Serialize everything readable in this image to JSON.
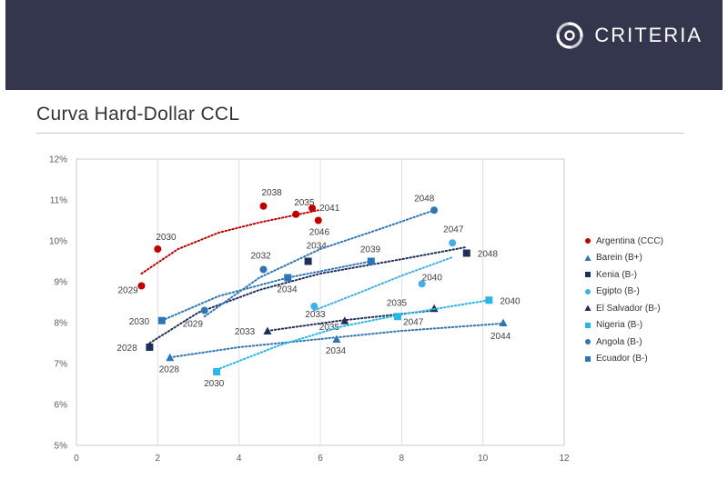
{
  "header": {
    "brand": "CRITERIA"
  },
  "page": {
    "title": "Curva Hard-Dollar CCL"
  },
  "chart_data": {
    "type": "scatter",
    "title": "Curva Hard-Dollar CCL",
    "xlim": [
      0,
      12
    ],
    "ylim": [
      5,
      12
    ],
    "x_ticks": [
      "0",
      "2",
      "4",
      "6",
      "8",
      "10",
      "12"
    ],
    "x_tick_values": [
      0,
      2,
      4,
      6,
      8,
      10,
      12
    ],
    "y_ticks": [
      "5%",
      "6%",
      "7%",
      "8%",
      "9%",
      "10%",
      "11%",
      "12%"
    ],
    "y_tick_values": [
      5,
      6,
      7,
      8,
      9,
      10,
      11,
      12
    ],
    "grid": "vertical",
    "legend_position": "right",
    "series": [
      {
        "name": "Argentina (CCC)",
        "color": "#c00000",
        "marker": "circle",
        "points": [
          {
            "x": 1.6,
            "y": 8.9,
            "label": "2029"
          },
          {
            "x": 2.0,
            "y": 9.8,
            "label": "2030"
          },
          {
            "x": 4.6,
            "y": 10.85,
            "label": "2038"
          },
          {
            "x": 5.4,
            "y": 10.65,
            "label": "2035"
          },
          {
            "x": 5.8,
            "y": 10.8,
            "label": "2041"
          },
          {
            "x": 5.95,
            "y": 10.5,
            "label": "2046"
          }
        ],
        "trend": [
          [
            1.6,
            9.2
          ],
          [
            2.5,
            9.8
          ],
          [
            3.5,
            10.2
          ],
          [
            4.5,
            10.45
          ],
          [
            5.95,
            10.75
          ]
        ]
      },
      {
        "name": "Barein (B+)",
        "color": "#2e75b6",
        "marker": "triangle",
        "points": [
          {
            "x": 2.3,
            "y": 7.15,
            "label": "2028"
          },
          {
            "x": 6.4,
            "y": 7.6,
            "label": "2034"
          },
          {
            "x": 10.5,
            "y": 8.0,
            "label": "2044"
          }
        ],
        "trend": [
          [
            2.3,
            7.15
          ],
          [
            4.0,
            7.4
          ],
          [
            6.0,
            7.6
          ],
          [
            8.0,
            7.8
          ],
          [
            10.5,
            7.98
          ]
        ]
      },
      {
        "name": "Kenia (B-)",
        "color": "#1f2f5c",
        "marker": "square",
        "points": [
          {
            "x": 1.8,
            "y": 7.4,
            "label": "2028"
          },
          {
            "x": 5.7,
            "y": 9.5,
            "label": "2034"
          },
          {
            "x": 9.6,
            "y": 9.7,
            "label": "2048"
          }
        ],
        "trend": [
          [
            1.8,
            7.5
          ],
          [
            3.0,
            8.25
          ],
          [
            4.5,
            8.8
          ],
          [
            6.0,
            9.2
          ],
          [
            8.0,
            9.55
          ],
          [
            9.6,
            9.85
          ]
        ]
      },
      {
        "name": "Egipto (B-)",
        "color": "#3fb0e6",
        "marker": "circle",
        "points": [
          {
            "x": 5.85,
            "y": 8.4,
            "label": "2033"
          },
          {
            "x": 8.5,
            "y": 8.95,
            "label": "2040"
          },
          {
            "x": 9.25,
            "y": 9.95,
            "label": "2047"
          }
        ],
        "trend": [
          [
            5.85,
            8.3
          ],
          [
            7.0,
            8.75
          ],
          [
            8.0,
            9.15
          ],
          [
            9.25,
            9.6
          ]
        ]
      },
      {
        "name": "El Salvador (B-)",
        "color": "#1f2f5c",
        "marker": "triangle",
        "points": [
          {
            "x": 4.7,
            "y": 7.8,
            "label": "2033"
          },
          {
            "x": 6.6,
            "y": 8.05,
            "label": "2035"
          },
          {
            "x": 8.8,
            "y": 8.35,
            "label": "2047"
          }
        ],
        "trend": [
          [
            4.7,
            7.8
          ],
          [
            6.5,
            8.05
          ],
          [
            8.8,
            8.3
          ]
        ]
      },
      {
        "name": "Nigeria (B-)",
        "color": "#29b6e8",
        "marker": "square",
        "points": [
          {
            "x": 3.45,
            "y": 6.8,
            "label": "2030"
          },
          {
            "x": 7.9,
            "y": 8.15,
            "label": "2035"
          },
          {
            "x": 10.15,
            "y": 8.55,
            "label": "2040"
          }
        ],
        "trend": [
          [
            3.45,
            6.85
          ],
          [
            5.0,
            7.45
          ],
          [
            6.5,
            7.9
          ],
          [
            8.0,
            8.2
          ],
          [
            10.15,
            8.55
          ]
        ]
      },
      {
        "name": "Angola (B-)",
        "color": "#2e75b6",
        "marker": "circle",
        "points": [
          {
            "x": 3.15,
            "y": 8.3,
            "label": "2029"
          },
          {
            "x": 4.6,
            "y": 9.3,
            "label": "2032"
          },
          {
            "x": 8.8,
            "y": 10.75,
            "label": "2048"
          }
        ],
        "trend": [
          [
            3.15,
            8.15
          ],
          [
            4.5,
            9.1
          ],
          [
            6.0,
            9.8
          ],
          [
            7.5,
            10.3
          ],
          [
            8.8,
            10.75
          ]
        ]
      },
      {
        "name": "Ecuador (B-)",
        "color": "#2e75b6",
        "marker": "square",
        "points": [
          {
            "x": 2.1,
            "y": 8.05,
            "label": "2030"
          },
          {
            "x": 5.2,
            "y": 9.1,
            "label": "2034"
          },
          {
            "x": 7.25,
            "y": 9.5,
            "label": "2039"
          }
        ],
        "trend": [
          [
            2.1,
            8.05
          ],
          [
            3.5,
            8.65
          ],
          [
            5.2,
            9.1
          ],
          [
            7.25,
            9.5
          ]
        ]
      }
    ]
  }
}
